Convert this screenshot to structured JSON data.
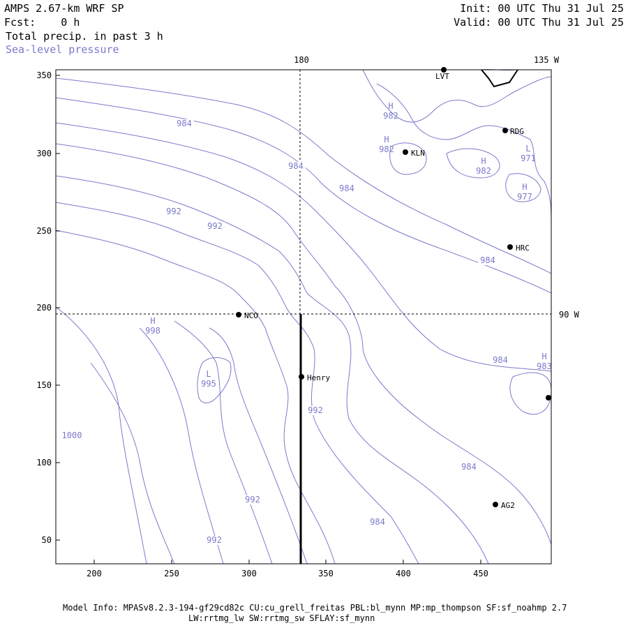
{
  "header": {
    "title": "AMPS 2.67-km WRF SP",
    "forecast": "Fcst:    0 h",
    "field_precip": "Total precip. in past 3 h",
    "field_slp": "Sea-level pressure",
    "init": "Init: 00 UTC Thu 31 Jul 25",
    "valid": "Valid: 00 UTC Thu 31 Jul 25"
  },
  "map": {
    "lon_label_180": "180",
    "lon_label_135w": "135 W",
    "lon_label_90w": "90 W",
    "x_ticks": [
      "200",
      "250",
      "300",
      "350",
      "400",
      "450"
    ],
    "y_ticks": [
      "50",
      "100",
      "150",
      "200",
      "250",
      "300",
      "350"
    ],
    "contour_color": "#7a7acc",
    "stations": [
      {
        "name": "LVT"
      },
      {
        "name": "RDG"
      },
      {
        "name": "KLN"
      },
      {
        "name": "HRC"
      },
      {
        "name": "NCO"
      },
      {
        "name": "Henry"
      },
      {
        "name": "AG2"
      },
      {
        "name": ""
      }
    ],
    "pressure_centers": [
      {
        "type": "H",
        "value": "982"
      },
      {
        "type": "H",
        "value": "982"
      },
      {
        "type": "H",
        "value": "982"
      },
      {
        "type": "L",
        "value": "971"
      },
      {
        "type": "H",
        "value": "977"
      },
      {
        "type": "H",
        "value": "998"
      },
      {
        "type": "L",
        "value": "995"
      },
      {
        "type": "H",
        "value": "983"
      }
    ],
    "contour_labels": [
      "984",
      "984",
      "984",
      "992",
      "992",
      "984",
      "984",
      "992",
      "1000",
      "984",
      "992",
      "984",
      "992"
    ]
  },
  "footer": {
    "line1": "Model Info: MPASv8.2.3-194-gf29cd82c CU:cu_grell_freitas PBL:bl_mynn MP:mp_thompson SF:sf_noahmp 2.7",
    "line2": "LW:rrtmg_lw SW:rrtmg_sw SFLAY:sf_mynn"
  }
}
